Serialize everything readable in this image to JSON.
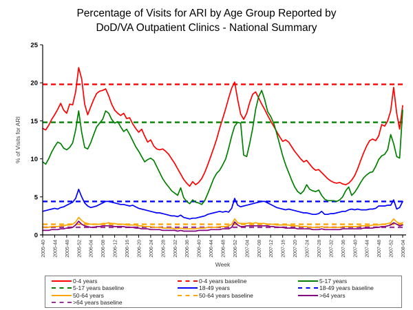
{
  "title": {
    "line1": "Percentage of Visits for ARI by Age Group Reported by",
    "line2": "DoD/VA Outpatient Clinics - National Summary"
  },
  "chart_data": {
    "type": "line",
    "title": "Percentage of Visits for ARI by Age Group Reported by DoD/VA Outpatient Clinics - National Summary",
    "xlabel": "Week",
    "ylabel": "% of Visits for ARI",
    "ylim": [
      0,
      25
    ],
    "y_ticks": [
      0,
      5,
      10,
      15,
      20,
      25
    ],
    "grid": false,
    "x_tick_labels": [
      "2005-40",
      "2005-44",
      "2005-48",
      "2005-52",
      "2006-04",
      "2006-08",
      "2006-12",
      "2006-16",
      "2006-20",
      "2006-24",
      "2006-28",
      "2006-32",
      "2006-36",
      "2006-40",
      "2006-44",
      "2006-48",
      "2006-52",
      "2007-04",
      "2007-08",
      "2007-12",
      "2007-16",
      "2007-20",
      "2007-24",
      "2007-28",
      "2007-32",
      "2007-36",
      "2007-40",
      "2007-44",
      "2007-48",
      "2007-52",
      "2008-04"
    ],
    "weeks_per_tick": 4,
    "series": [
      {
        "name": "0-4 years",
        "color": "#FF0000",
        "style": "solid",
        "values": [
          14.0,
          13.8,
          14.4,
          15.2,
          15.8,
          16.5,
          17.3,
          16.4,
          16.0,
          17.2,
          17.1,
          18.8,
          22.0,
          20.5,
          17.2,
          15.8,
          16.8,
          17.8,
          18.6,
          18.9,
          19.0,
          19.2,
          18.3,
          17.2,
          16.4,
          16.0,
          15.7,
          16.0,
          15.3,
          15.4,
          14.6,
          14.0,
          13.5,
          13.9,
          13.0,
          12.2,
          12.5,
          11.7,
          11.3,
          11.2,
          11.3,
          11.0,
          10.6,
          10.0,
          9.4,
          8.7,
          8.0,
          7.3,
          6.8,
          6.4,
          7.0,
          6.6,
          6.9,
          7.4,
          8.2,
          9.2,
          10.3,
          11.4,
          12.6,
          14.0,
          15.3,
          16.6,
          18.0,
          19.3,
          20.1,
          17.8,
          15.9,
          15.2,
          16.0,
          17.4,
          18.5,
          18.8,
          18.0,
          17.2,
          16.5,
          15.7,
          15.0,
          14.3,
          13.6,
          12.9,
          12.3,
          12.5,
          12.2,
          11.6,
          11.0,
          10.5,
          10.0,
          9.6,
          9.8,
          9.3,
          8.8,
          8.5,
          8.6,
          8.2,
          7.8,
          7.4,
          7.1,
          6.9,
          6.8,
          6.9,
          6.7,
          6.6,
          6.8,
          7.2,
          7.8,
          8.7,
          9.8,
          10.8,
          11.7,
          12.4,
          12.6,
          12.4,
          13.0,
          14.5,
          14.3,
          15.0,
          16.3,
          19.4,
          16.0,
          13.9,
          17.0
        ]
      },
      {
        "name": "5-17 years",
        "color": "#008000",
        "style": "solid",
        "values": [
          9.6,
          9.3,
          10.0,
          10.9,
          11.6,
          12.2,
          12.0,
          11.4,
          11.2,
          11.5,
          12.1,
          13.8,
          16.3,
          13.5,
          11.5,
          11.3,
          12.1,
          13.2,
          14.2,
          14.7,
          15.2,
          16.3,
          16.0,
          15.2,
          14.7,
          14.9,
          14.2,
          13.6,
          13.9,
          13.2,
          12.4,
          11.6,
          11.0,
          10.3,
          9.6,
          9.9,
          10.1,
          9.8,
          9.0,
          8.2,
          7.4,
          6.8,
          6.3,
          5.8,
          5.5,
          5.2,
          6.2,
          4.9,
          4.4,
          4.1,
          4.6,
          4.3,
          4.2,
          4.0,
          4.5,
          5.4,
          6.4,
          7.4,
          8.1,
          8.5,
          9.2,
          10.0,
          11.4,
          13.0,
          14.3,
          14.8,
          14.7,
          10.5,
          10.3,
          12.0,
          14.0,
          16.5,
          18.2,
          19.0,
          17.8,
          16.2,
          15.6,
          14.7,
          13.4,
          11.9,
          10.4,
          9.2,
          8.2,
          7.2,
          6.3,
          5.7,
          5.4,
          5.8,
          6.6,
          6.0,
          5.8,
          5.7,
          5.9,
          5.2,
          4.7,
          4.5,
          4.5,
          4.5,
          4.4,
          4.6,
          5.0,
          5.8,
          6.3,
          5.2,
          5.6,
          6.2,
          6.9,
          7.5,
          7.9,
          8.2,
          8.3,
          9.0,
          9.9,
          10.4,
          10.6,
          11.2,
          13.2,
          12.0,
          10.3,
          10.1,
          16.4
        ]
      },
      {
        "name": "18-49 years",
        "color": "#0000FF",
        "style": "solid",
        "values": [
          3.1,
          3.2,
          3.3,
          3.4,
          3.5,
          3.4,
          3.6,
          3.7,
          3.9,
          4.1,
          4.3,
          4.8,
          6.0,
          5.0,
          4.2,
          3.8,
          3.6,
          3.7,
          3.8,
          4.0,
          4.2,
          4.4,
          4.4,
          4.3,
          4.2,
          4.1,
          4.0,
          4.0,
          3.9,
          3.8,
          3.9,
          3.7,
          3.5,
          3.4,
          3.3,
          3.2,
          3.1,
          3.0,
          2.9,
          2.9,
          2.8,
          2.7,
          2.6,
          2.5,
          2.5,
          2.4,
          2.6,
          2.3,
          2.2,
          2.1,
          2.2,
          2.2,
          2.3,
          2.4,
          2.5,
          2.7,
          2.8,
          2.9,
          3.0,
          3.1,
          3.0,
          3.1,
          3.0,
          3.5,
          4.8,
          3.9,
          3.7,
          3.8,
          3.9,
          4.0,
          4.1,
          4.2,
          4.3,
          4.4,
          4.4,
          4.2,
          4.0,
          3.8,
          3.6,
          3.5,
          3.4,
          3.3,
          3.4,
          3.3,
          3.2,
          3.1,
          3.0,
          2.9,
          2.9,
          2.8,
          2.7,
          2.7,
          2.8,
          3.1,
          2.7,
          2.7,
          2.8,
          2.8,
          2.9,
          3.0,
          3.1,
          3.1,
          3.3,
          3.4,
          3.3,
          3.4,
          3.3,
          3.3,
          3.3,
          3.4,
          3.4,
          3.5,
          3.8,
          3.8,
          3.8,
          3.9,
          3.9,
          4.6,
          3.4,
          3.6,
          4.4
        ]
      },
      {
        "name": "50-64 years",
        "color": "#FFA500",
        "style": "solid",
        "values": [
          1.0,
          1.0,
          1.0,
          1.1,
          1.1,
          1.1,
          1.2,
          1.2,
          1.3,
          1.3,
          1.4,
          1.7,
          2.3,
          1.9,
          1.6,
          1.5,
          1.4,
          1.4,
          1.4,
          1.4,
          1.5,
          1.5,
          1.6,
          1.5,
          1.5,
          1.4,
          1.4,
          1.4,
          1.3,
          1.3,
          1.3,
          1.3,
          1.2,
          1.2,
          1.1,
          1.1,
          1.1,
          1.0,
          1.0,
          1.0,
          0.9,
          0.9,
          0.9,
          0.9,
          0.8,
          0.8,
          0.9,
          0.8,
          0.8,
          0.8,
          0.8,
          0.8,
          0.9,
          0.9,
          0.9,
          1.0,
          1.0,
          1.0,
          1.0,
          1.1,
          1.1,
          1.1,
          1.2,
          1.4,
          2.1,
          1.6,
          1.5,
          1.5,
          1.5,
          1.6,
          1.5,
          1.6,
          1.5,
          1.5,
          1.5,
          1.4,
          1.4,
          1.4,
          1.3,
          1.3,
          1.3,
          1.3,
          1.3,
          1.2,
          1.2,
          1.2,
          1.1,
          1.1,
          1.1,
          1.0,
          1.0,
          1.0,
          1.0,
          1.1,
          1.0,
          1.0,
          1.0,
          1.0,
          1.0,
          1.0,
          1.1,
          1.1,
          1.1,
          1.1,
          1.1,
          1.1,
          1.2,
          1.2,
          1.2,
          1.2,
          1.3,
          1.3,
          1.3,
          1.4,
          1.4,
          1.5,
          1.6,
          2.1,
          1.7,
          1.5,
          1.6
        ]
      },
      {
        "name": ">64 years",
        "color": "#800080",
        "style": "solid",
        "values": [
          0.6,
          0.6,
          0.6,
          0.7,
          0.7,
          0.7,
          0.8,
          0.8,
          0.9,
          0.9,
          1.0,
          1.3,
          1.8,
          1.4,
          1.2,
          1.1,
          1.0,
          1.0,
          1.1,
          1.1,
          1.2,
          1.2,
          1.2,
          1.2,
          1.1,
          1.1,
          1.1,
          1.1,
          1.0,
          1.0,
          1.0,
          0.9,
          0.9,
          0.8,
          0.8,
          0.8,
          0.7,
          0.7,
          0.7,
          0.7,
          0.6,
          0.6,
          0.6,
          0.6,
          0.6,
          0.5,
          0.6,
          0.5,
          0.5,
          0.5,
          0.5,
          0.5,
          0.6,
          0.6,
          0.6,
          0.6,
          0.7,
          0.7,
          0.7,
          0.7,
          0.8,
          0.8,
          0.8,
          1.0,
          1.7,
          1.3,
          1.1,
          1.1,
          1.2,
          1.2,
          1.2,
          1.2,
          1.2,
          1.2,
          1.2,
          1.2,
          1.1,
          1.1,
          1.0,
          1.0,
          1.0,
          0.9,
          0.9,
          0.9,
          0.9,
          0.8,
          0.8,
          0.8,
          0.8,
          0.8,
          0.7,
          0.7,
          0.7,
          0.8,
          0.7,
          0.7,
          0.7,
          0.7,
          0.7,
          0.7,
          0.8,
          0.8,
          0.8,
          0.8,
          0.8,
          0.8,
          0.8,
          0.9,
          0.9,
          0.9,
          0.9,
          1.0,
          1.0,
          1.1,
          1.1,
          1.2,
          1.3,
          1.6,
          1.4,
          1.2,
          1.3
        ]
      }
    ],
    "baselines": [
      {
        "name": "0-4 years baseline",
        "color": "#FF0000",
        "value": 19.8
      },
      {
        "name": "5-17 years baseline",
        "color": "#008000",
        "value": 14.8
      },
      {
        "name": "18-49 years baseline",
        "color": "#0000FF",
        "value": 4.4
      },
      {
        "name": "50-64 years baseline",
        "color": "#FFA500",
        "value": 1.4
      },
      {
        "name": ">64 years baseline",
        "color": "#993399",
        "value": 1.0
      }
    ],
    "legend": {
      "position": "bottom",
      "entries": [
        {
          "label": "0-4 years",
          "color": "#FF0000",
          "dash": false
        },
        {
          "label": "0-4 years baseline",
          "color": "#FF0000",
          "dash": true
        },
        {
          "label": "5-17 years",
          "color": "#008000",
          "dash": false
        },
        {
          "label": "5-17 years baseline",
          "color": "#008000",
          "dash": true
        },
        {
          "label": "18-49 years",
          "color": "#0000FF",
          "dash": false
        },
        {
          "label": "18-49 years baseline",
          "color": "#0000FF",
          "dash": true
        },
        {
          "label": "50-64 years",
          "color": "#FFA500",
          "dash": false
        },
        {
          "label": "50-64 years baseline",
          "color": "#FFA500",
          "dash": true
        },
        {
          "label": ">64 years",
          "color": "#800080",
          "dash": false
        },
        {
          "label": ">64 years baseline",
          "color": "#993399",
          "dash": true
        }
      ]
    }
  }
}
